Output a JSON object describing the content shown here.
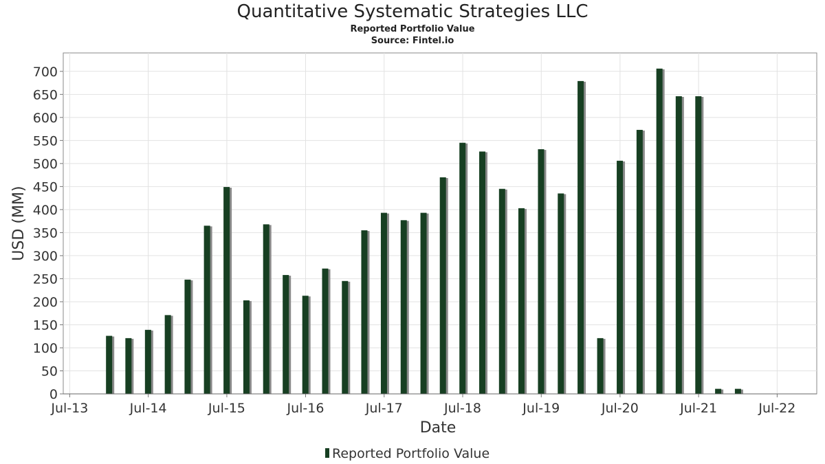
{
  "chart_data": {
    "type": "bar",
    "title": "Quantitative Systematic Strategies LLC",
    "subtitle": "Reported Portfolio Value",
    "source": "Source: Fintel.io",
    "xlabel": "Date",
    "ylabel": "USD (MM)",
    "ylim": [
      0,
      740
    ],
    "yticks": [
      0,
      50,
      100,
      150,
      200,
      250,
      300,
      350,
      400,
      450,
      500,
      550,
      600,
      650,
      700
    ],
    "xlim": [
      "2013-06-01",
      "2023-01-01"
    ],
    "xtick_labels": [
      "Jul-13",
      "Jul-14",
      "Jul-15",
      "Jul-16",
      "Jul-17",
      "Jul-18",
      "Jul-19",
      "Jul-20",
      "Jul-21",
      "Jul-22"
    ],
    "xtick_dates": [
      "2013-07-01",
      "2014-07-01",
      "2015-07-01",
      "2016-07-01",
      "2017-07-01",
      "2018-07-01",
      "2019-07-01",
      "2020-07-01",
      "2021-07-01",
      "2022-07-01"
    ],
    "grid": true,
    "legend_position": "bottom-center",
    "bar_color": "#173f22",
    "shadow_color": "#8a8a8a",
    "series": [
      {
        "name": "Reported Portfolio Value",
        "x": [
          "2013-12-31",
          "2014-03-31",
          "2014-06-30",
          "2014-09-30",
          "2014-12-31",
          "2015-03-31",
          "2015-06-30",
          "2015-09-30",
          "2015-12-31",
          "2016-03-31",
          "2016-06-30",
          "2016-09-30",
          "2016-12-31",
          "2017-03-31",
          "2017-06-30",
          "2017-09-30",
          "2017-12-31",
          "2018-03-31",
          "2018-06-30",
          "2018-09-30",
          "2018-12-31",
          "2019-03-31",
          "2019-06-30",
          "2019-09-30",
          "2019-12-31",
          "2020-03-31",
          "2020-06-30",
          "2020-09-30",
          "2020-12-31",
          "2021-03-31",
          "2021-06-30",
          "2021-09-30",
          "2021-12-31"
        ],
        "values": [
          126,
          121,
          139,
          171,
          248,
          365,
          449,
          203,
          368,
          258,
          213,
          272,
          245,
          355,
          393,
          377,
          393,
          470,
          545,
          526,
          445,
          403,
          531,
          435,
          679,
          121,
          506,
          573,
          706,
          646,
          646,
          11,
          11
        ]
      }
    ]
  }
}
